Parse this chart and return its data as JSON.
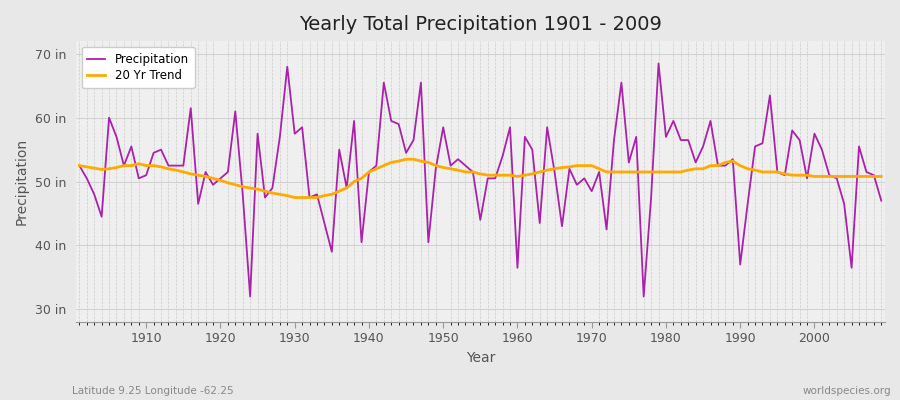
{
  "title": "Yearly Total Precipitation 1901 - 2009",
  "xlabel": "Year",
  "ylabel": "Precipitation",
  "footnote_left": "Latitude 9.25 Longitude -62.25",
  "footnote_right": "worldspecies.org",
  "line_color": "#aa22aa",
  "trend_color": "#ffaa00",
  "bg_color_outer": "#e8e8e8",
  "bg_color_inner": "#efefef",
  "grid_color": "#cccccc",
  "ylim": [
    28,
    72
  ],
  "yticks": [
    30,
    40,
    50,
    60,
    70
  ],
  "ytick_labels": [
    "30 in",
    "40 in",
    "50 in",
    "60 in",
    "70 in"
  ],
  "xticks": [
    1910,
    1920,
    1930,
    1940,
    1950,
    1960,
    1970,
    1980,
    1990,
    2000
  ],
  "years": [
    1901,
    1902,
    1903,
    1904,
    1905,
    1906,
    1907,
    1908,
    1909,
    1910,
    1911,
    1912,
    1913,
    1914,
    1915,
    1916,
    1917,
    1918,
    1919,
    1920,
    1921,
    1922,
    1923,
    1924,
    1925,
    1926,
    1927,
    1928,
    1929,
    1930,
    1931,
    1932,
    1933,
    1934,
    1935,
    1936,
    1937,
    1938,
    1939,
    1940,
    1941,
    1942,
    1943,
    1944,
    1945,
    1946,
    1947,
    1948,
    1949,
    1950,
    1951,
    1952,
    1953,
    1954,
    1955,
    1956,
    1957,
    1958,
    1959,
    1960,
    1961,
    1962,
    1963,
    1964,
    1965,
    1966,
    1967,
    1968,
    1969,
    1970,
    1971,
    1972,
    1973,
    1974,
    1975,
    1976,
    1977,
    1978,
    1979,
    1980,
    1981,
    1982,
    1983,
    1984,
    1985,
    1986,
    1987,
    1988,
    1989,
    1990,
    1991,
    1992,
    1993,
    1994,
    1995,
    1996,
    1997,
    1998,
    1999,
    2000,
    2001,
    2002,
    2003,
    2004,
    2005,
    2006,
    2007,
    2008,
    2009
  ],
  "precip": [
    52.5,
    50.5,
    48.0,
    44.5,
    60.0,
    57.0,
    52.5,
    55.5,
    50.5,
    51.0,
    54.5,
    55.0,
    52.5,
    52.5,
    52.5,
    61.5,
    46.5,
    51.5,
    49.5,
    50.5,
    51.5,
    61.0,
    48.0,
    32.0,
    57.5,
    47.5,
    49.0,
    57.0,
    68.0,
    57.5,
    58.5,
    47.5,
    48.0,
    43.5,
    39.0,
    55.0,
    49.0,
    59.5,
    40.5,
    51.5,
    52.5,
    65.5,
    59.5,
    59.0,
    54.5,
    56.5,
    65.5,
    40.5,
    52.0,
    58.5,
    52.5,
    53.5,
    52.5,
    51.5,
    44.0,
    50.5,
    50.5,
    54.0,
    58.5,
    36.5,
    57.0,
    55.0,
    43.5,
    58.5,
    51.5,
    43.0,
    52.0,
    49.5,
    50.5,
    48.5,
    51.5,
    42.5,
    56.5,
    65.5,
    53.0,
    57.0,
    32.0,
    47.5,
    68.5,
    57.0,
    59.5,
    56.5,
    56.5,
    53.0,
    55.5,
    59.5,
    52.5,
    52.5,
    53.5,
    37.0,
    46.5,
    55.5,
    56.0,
    63.5,
    51.5,
    51.0,
    58.0,
    56.5,
    50.5,
    57.5,
    55.0,
    51.0,
    50.5,
    46.5,
    36.5,
    55.5,
    51.5,
    51.0,
    47.0
  ],
  "trend": [
    52.5,
    52.3,
    52.1,
    51.9,
    52.0,
    52.2,
    52.5,
    52.5,
    52.8,
    52.5,
    52.5,
    52.3,
    52.0,
    51.8,
    51.5,
    51.2,
    51.0,
    50.8,
    50.5,
    50.2,
    49.8,
    49.5,
    49.2,
    49.0,
    48.8,
    48.5,
    48.2,
    48.0,
    47.8,
    47.5,
    47.5,
    47.5,
    47.5,
    47.8,
    48.0,
    48.5,
    49.0,
    50.0,
    50.5,
    51.5,
    52.0,
    52.5,
    53.0,
    53.2,
    53.5,
    53.5,
    53.2,
    53.0,
    52.5,
    52.2,
    52.0,
    51.8,
    51.5,
    51.5,
    51.2,
    51.0,
    51.0,
    51.0,
    51.0,
    50.8,
    51.0,
    51.2,
    51.5,
    51.8,
    52.0,
    52.2,
    52.3,
    52.5,
    52.5,
    52.5,
    52.0,
    51.5,
    51.5,
    51.5,
    51.5,
    51.5,
    51.5,
    51.5,
    51.5,
    51.5,
    51.5,
    51.5,
    51.8,
    52.0,
    52.0,
    52.5,
    52.5,
    53.0,
    53.2,
    52.5,
    52.0,
    51.8,
    51.5,
    51.5,
    51.5,
    51.2,
    51.0,
    51.0,
    51.0,
    50.8,
    50.8,
    50.8,
    50.8,
    50.8,
    50.8,
    50.8,
    50.8,
    50.8,
    50.8
  ]
}
